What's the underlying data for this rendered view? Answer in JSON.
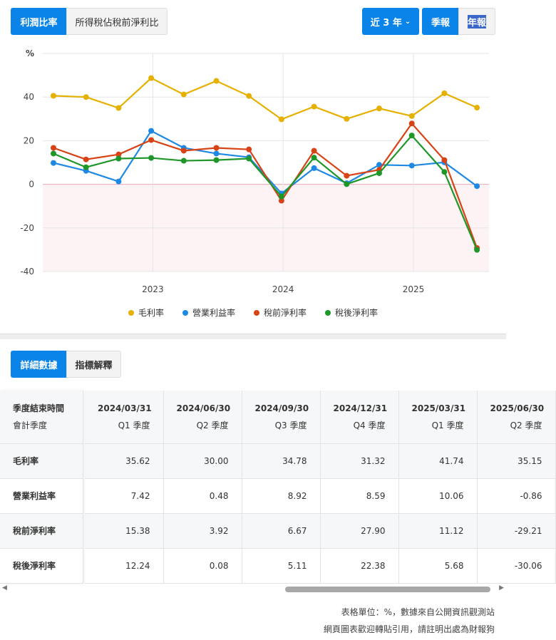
{
  "tabs": {
    "profit": "利潤比率",
    "tax": "所得稅佔稅前淨利比"
  },
  "range": {
    "label": "近 3 年",
    "chevron": "chevron-down-icon"
  },
  "period": {
    "quarter": "季報",
    "annual": "年報"
  },
  "chart_data": {
    "type": "line",
    "ylabel": "%",
    "ylim": [
      -40,
      60
    ],
    "yticks": [
      "40",
      "20",
      "0",
      "-20",
      "-40"
    ],
    "xticks": [
      "2023",
      "2024",
      "2025"
    ],
    "grid": true,
    "legend": "bottom",
    "x": [
      "2022/03/31",
      "2022/06/30",
      "2022/09/30",
      "2022/12/31",
      "2023/03/31",
      "2023/06/30",
      "2023/09/30",
      "2023/12/31",
      "2024/03/31",
      "2024/06/30",
      "2024/09/30",
      "2024/12/31",
      "2025/03/31",
      "2025/06/30"
    ],
    "series": [
      {
        "name": "毛利率",
        "color": "#e6b000",
        "values": [
          40.6,
          40.0,
          35.0,
          48.7,
          41.2,
          47.4,
          40.5,
          29.8,
          35.62,
          30.0,
          34.78,
          31.32,
          41.74,
          35.15
        ]
      },
      {
        "name": "營業利益率",
        "color": "#1e88e5",
        "values": [
          9.8,
          6.2,
          1.3,
          24.5,
          16.7,
          14.1,
          12.4,
          -4.2,
          7.42,
          0.48,
          8.92,
          8.59,
          10.06,
          -0.86
        ]
      },
      {
        "name": "稅前淨利率",
        "color": "#d84315",
        "values": [
          16.7,
          11.4,
          13.7,
          20.3,
          15.4,
          16.7,
          16.0,
          -7.5,
          15.38,
          3.92,
          6.67,
          27.9,
          11.12,
          -29.21
        ]
      },
      {
        "name": "稅後淨利率",
        "color": "#1e9628",
        "values": [
          14.1,
          7.8,
          11.8,
          12.1,
          10.8,
          11.1,
          11.8,
          -5.6,
          12.24,
          0.08,
          5.11,
          22.38,
          5.68,
          -30.06
        ]
      }
    ]
  },
  "detail_tabs": {
    "data": "詳細數據",
    "explain": "指標解釋"
  },
  "table": {
    "header_label": "季度結束時間",
    "header_sub": "會計季度",
    "columns": [
      {
        "date": "2024/03/31",
        "q": "Q1 季度"
      },
      {
        "date": "2024/06/30",
        "q": "Q2 季度"
      },
      {
        "date": "2024/09/30",
        "q": "Q3 季度"
      },
      {
        "date": "2024/12/31",
        "q": "Q4 季度"
      },
      {
        "date": "2025/03/31",
        "q": "Q1 季度"
      },
      {
        "date": "2025/06/30",
        "q": "Q2 季度"
      }
    ],
    "rows": [
      {
        "label": "毛利率",
        "values": [
          "35.62",
          "30.00",
          "34.78",
          "31.32",
          "41.74",
          "35.15"
        ]
      },
      {
        "label": "營業利益率",
        "values": [
          "7.42",
          "0.48",
          "8.92",
          "8.59",
          "10.06",
          "-0.86"
        ]
      },
      {
        "label": "稅前淨利率",
        "values": [
          "15.38",
          "3.92",
          "6.67",
          "27.90",
          "11.12",
          "-29.21"
        ]
      },
      {
        "label": "稅後淨利率",
        "values": [
          "12.24",
          "0.08",
          "5.11",
          "22.38",
          "5.68",
          "-30.06"
        ]
      }
    ]
  },
  "notes": {
    "unit": "表格單位：%，數據來自公開資訊觀測站",
    "credit": "網頁圖表歡迎轉貼引用，請註明出處為財報狗"
  }
}
